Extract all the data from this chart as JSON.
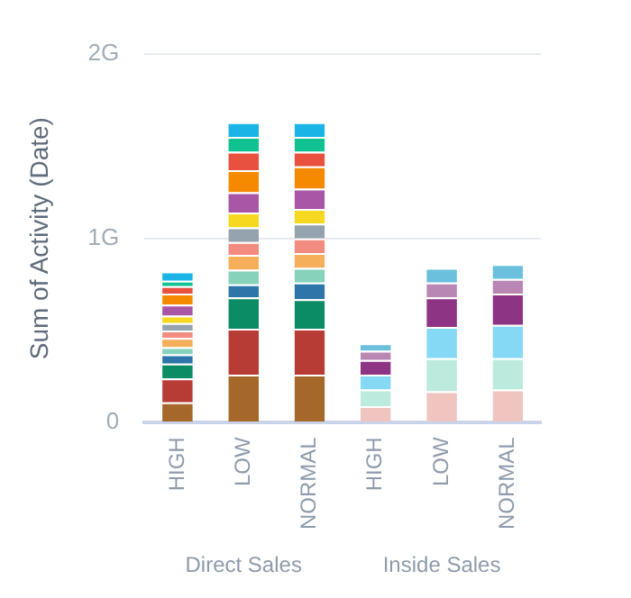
{
  "chart_data": {
    "type": "bar",
    "stacked": true,
    "ylabel": "Sum of Activity (Date)",
    "categories": [
      "HIGH",
      "LOW",
      "NORMAL",
      "HIGH",
      "LOW",
      "NORMAL"
    ],
    "annotations": [
      "Direct Sales",
      "Inside Sales"
    ],
    "ylim": [
      0,
      2
    ],
    "yticks": [
      {
        "value": 0,
        "label": "0"
      },
      {
        "value": 1,
        "label": "1G"
      },
      {
        "value": 2,
        "label": "2G"
      }
    ],
    "grid": "y",
    "legend": false,
    "series": [
      {
        "color": "#a5682a",
        "values": [
          0.11,
          0.26,
          0.26,
          null,
          null,
          null
        ]
      },
      {
        "color": "#b83c36",
        "values": [
          0.13,
          0.25,
          0.25,
          null,
          null,
          null
        ]
      },
      {
        "color": "#0b8c64",
        "values": [
          0.08,
          0.17,
          0.16,
          null,
          null,
          null
        ]
      },
      {
        "color": "#2e75aa",
        "values": [
          0.05,
          0.07,
          0.09,
          null,
          null,
          null
        ]
      },
      {
        "color": "#86d2bb",
        "values": [
          0.04,
          0.08,
          0.08,
          null,
          null,
          null
        ]
      },
      {
        "color": "#f5ae59",
        "values": [
          0.05,
          0.08,
          0.08,
          null,
          null,
          null
        ]
      },
      {
        "color": "#f28b80",
        "values": [
          0.04,
          0.07,
          0.08,
          null,
          null,
          null
        ]
      },
      {
        "color": "#95a3ae",
        "values": [
          0.04,
          0.08,
          0.08,
          null,
          null,
          null
        ]
      },
      {
        "color": "#f5d81f",
        "values": [
          0.04,
          0.08,
          0.08,
          null,
          null,
          null
        ]
      },
      {
        "color": "#a956a6",
        "values": [
          0.06,
          0.11,
          0.11,
          null,
          null,
          null
        ]
      },
      {
        "color": "#f58a00",
        "values": [
          0.06,
          0.12,
          0.12,
          null,
          null,
          null
        ]
      },
      {
        "color": "#e8503f",
        "values": [
          0.04,
          0.1,
          0.08,
          null,
          null,
          null
        ]
      },
      {
        "color": "#10c290",
        "values": [
          0.03,
          0.08,
          0.08,
          null,
          null,
          null
        ]
      },
      {
        "color": "#1ab4e6",
        "values": [
          0.05,
          0.08,
          0.08,
          null,
          null,
          null
        ]
      },
      {
        "color": "#f0c5c0",
        "values": [
          null,
          null,
          null,
          0.09,
          0.17,
          0.18
        ]
      },
      {
        "color": "#bcebde",
        "values": [
          null,
          null,
          null,
          0.09,
          0.18,
          0.17
        ]
      },
      {
        "color": "#86d9f4",
        "values": [
          null,
          null,
          null,
          0.08,
          0.17,
          0.18
        ]
      },
      {
        "color": "#8e3484",
        "values": [
          null,
          null,
          null,
          0.08,
          0.16,
          0.17
        ]
      },
      {
        "color": "#b987b3",
        "values": [
          null,
          null,
          null,
          0.05,
          0.08,
          0.08
        ]
      },
      {
        "color": "#6bc1dd",
        "values": [
          null,
          null,
          null,
          0.04,
          0.08,
          0.08
        ]
      }
    ]
  }
}
